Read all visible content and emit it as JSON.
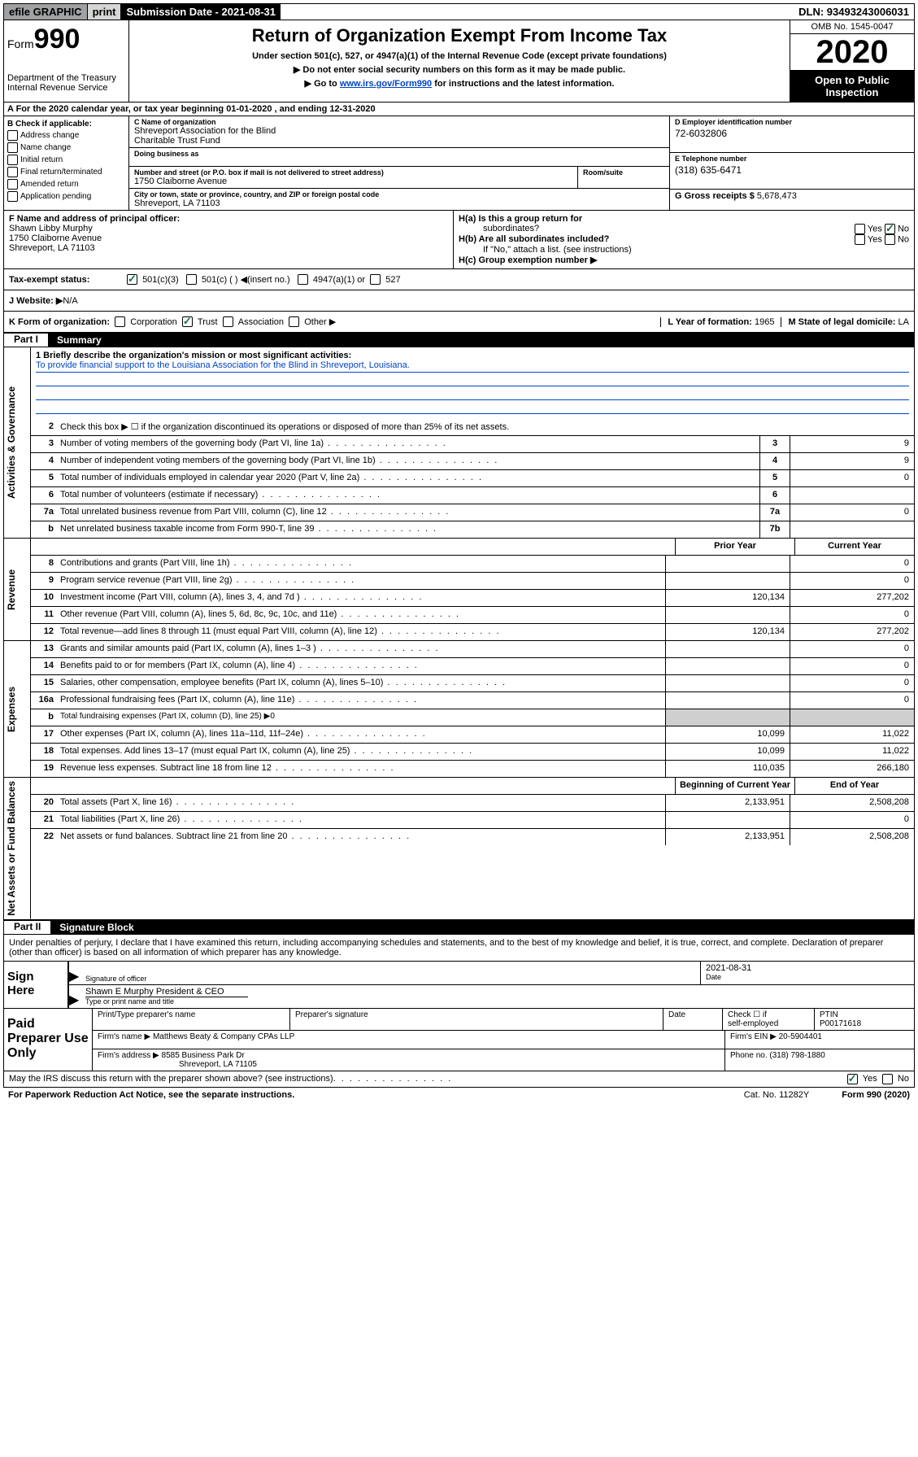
{
  "topbar": {
    "efile": "efile GRAPHIC",
    "print": "print",
    "submission": "Submission Date - 2021-08-31",
    "dln": "DLN: 93493243006031"
  },
  "header": {
    "form_prefix": "Form",
    "form_no": "990",
    "title": "Return of Organization Exempt From Income Tax",
    "sub1": "Under section 501(c), 527, or 4947(a)(1) of the Internal Revenue Code (except private foundations)",
    "sub2": "▶ Do not enter social security numbers on this form as it may be made public.",
    "sub3_pre": "▶ Go to ",
    "sub3_link": "www.irs.gov/Form990",
    "sub3_post": " for instructions and the latest information.",
    "dept": "Department of the Treasury\nInternal Revenue Service",
    "omb": "OMB No. 1545-0047",
    "year": "2020",
    "open": "Open to Public Inspection"
  },
  "rowA": "A For the 2020 calendar year, or tax year beginning 01-01-2020     , and ending 12-31-2020",
  "boxB": {
    "title": "B Check if applicable:",
    "items": [
      "Address change",
      "Name change",
      "Initial return",
      "Final return/terminated",
      "Amended return",
      "Application pending"
    ]
  },
  "boxC": {
    "name_label": "C Name of organization",
    "name": "Shreveport Association for the Blind\nCharitable Trust Fund",
    "dba_label": "Doing business as",
    "street_label": "Number and street (or P.O. box if mail is not delivered to street address)",
    "street": "1750 Claiborne Avenue",
    "room_label": "Room/suite",
    "city_label": "City or town, state or province, country, and ZIP or foreign postal code",
    "city": "Shreveport, LA  71103"
  },
  "boxD": {
    "label": "D Employer identification number",
    "val": "72-6032806"
  },
  "boxE": {
    "label": "E Telephone number",
    "val": "(318) 635-6471"
  },
  "boxG": {
    "label": "G Gross receipts $ ",
    "val": "5,678,473"
  },
  "boxF": {
    "label": "F  Name and address of principal officer:",
    "lines": [
      "Shawn Libby Murphy",
      "1750 Claiborne Avenue",
      "Shreveport, LA  71103"
    ]
  },
  "boxH": {
    "a": "H(a)  Is this a group return for",
    "a2": "subordinates?",
    "b": "H(b)  Are all subordinates included?",
    "note": "If \"No,\" attach a list. (see instructions)",
    "c": "H(c)  Group exemption number ▶"
  },
  "taxExempt": {
    "label": "Tax-exempt status:",
    "opts": [
      "501(c)(3)",
      "501(c) (  ) ◀(insert no.)",
      "4947(a)(1) or",
      "527"
    ]
  },
  "boxJ": {
    "label": "J   Website: ▶",
    "val": "  N/A"
  },
  "boxK": {
    "label": "K Form of organization:",
    "opts": [
      "Corporation",
      "Trust",
      "Association",
      "Other ▶"
    ],
    "l_label": "L Year of formation: ",
    "l_val": "1965",
    "m_label": "M State of legal domicile: ",
    "m_val": "LA"
  },
  "part1": {
    "num": "Part I",
    "title": "Summary"
  },
  "mission": {
    "q": "1  Briefly describe the organization's mission or most significant activities:",
    "a": "To provide financial support to the Louisiana Association for the Blind in Shreveport, Louisiana."
  },
  "lines_gov": [
    {
      "n": "2",
      "d": "Check this box ▶ ☐  if the organization discontinued its operations or disposed of more than 25% of its net assets.",
      "box": "",
      "v": ""
    },
    {
      "n": "3",
      "d": "Number of voting members of the governing body (Part VI, line 1a)",
      "box": "3",
      "v": "9"
    },
    {
      "n": "4",
      "d": "Number of independent voting members of the governing body (Part VI, line 1b)",
      "box": "4",
      "v": "9"
    },
    {
      "n": "5",
      "d": "Total number of individuals employed in calendar year 2020 (Part V, line 2a)",
      "box": "5",
      "v": "0"
    },
    {
      "n": "6",
      "d": "Total number of volunteers (estimate if necessary)",
      "box": "6",
      "v": ""
    },
    {
      "n": "7a",
      "d": "Total unrelated business revenue from Part VIII, column (C), line 12",
      "box": "7a",
      "v": "0"
    },
    {
      "n": "b",
      "d": "Net unrelated business taxable income from Form 990-T, line 39",
      "box": "7b",
      "v": ""
    }
  ],
  "col_headers": {
    "prior": "Prior Year",
    "current": "Current Year",
    "begin": "Beginning of Current Year",
    "end": "End of Year"
  },
  "lines_rev": [
    {
      "n": "8",
      "d": "Contributions and grants (Part VIII, line 1h)",
      "p": "",
      "c": "0"
    },
    {
      "n": "9",
      "d": "Program service revenue (Part VIII, line 2g)",
      "p": "",
      "c": "0"
    },
    {
      "n": "10",
      "d": "Investment income (Part VIII, column (A), lines 3, 4, and 7d )",
      "p": "120,134",
      "c": "277,202"
    },
    {
      "n": "11",
      "d": "Other revenue (Part VIII, column (A), lines 5, 6d, 8c, 9c, 10c, and 11e)",
      "p": "",
      "c": "0"
    },
    {
      "n": "12",
      "d": "Total revenue—add lines 8 through 11 (must equal Part VIII, column (A), line 12)",
      "p": "120,134",
      "c": "277,202"
    }
  ],
  "lines_exp": [
    {
      "n": "13",
      "d": "Grants and similar amounts paid (Part IX, column (A), lines 1–3 )",
      "p": "",
      "c": "0"
    },
    {
      "n": "14",
      "d": "Benefits paid to or for members (Part IX, column (A), line 4)",
      "p": "",
      "c": "0"
    },
    {
      "n": "15",
      "d": "Salaries, other compensation, employee benefits (Part IX, column (A), lines 5–10)",
      "p": "",
      "c": "0"
    },
    {
      "n": "16a",
      "d": "Professional fundraising fees (Part IX, column (A), line 11e)",
      "p": "",
      "c": "0"
    },
    {
      "n": "b",
      "d": "Total fundraising expenses (Part IX, column (D), line 25) ▶0",
      "shade": true
    },
    {
      "n": "17",
      "d": "Other expenses (Part IX, column (A), lines 11a–11d, 11f–24e)",
      "p": "10,099",
      "c": "11,022"
    },
    {
      "n": "18",
      "d": "Total expenses. Add lines 13–17 (must equal Part IX, column (A), line 25)",
      "p": "10,099",
      "c": "11,022"
    },
    {
      "n": "19",
      "d": "Revenue less expenses. Subtract line 18 from line 12",
      "p": "110,035",
      "c": "266,180"
    }
  ],
  "lines_net": [
    {
      "n": "20",
      "d": "Total assets (Part X, line 16)",
      "p": "2,133,951",
      "c": "2,508,208"
    },
    {
      "n": "21",
      "d": "Total liabilities (Part X, line 26)",
      "p": "",
      "c": "0"
    },
    {
      "n": "22",
      "d": "Net assets or fund balances. Subtract line 21 from line 20",
      "p": "2,133,951",
      "c": "2,508,208"
    }
  ],
  "vtabs": {
    "gov": "Activities & Governance",
    "rev": "Revenue",
    "exp": "Expenses",
    "net": "Net Assets or Fund Balances"
  },
  "part2": {
    "num": "Part II",
    "title": "Signature Block"
  },
  "sig": {
    "perjury": "Under penalties of perjury, I declare that I have examined this return, including accompanying schedules and statements, and to the best of my knowledge and belief, it is true, correct, and complete. Declaration of preparer (other than officer) is based on all information of which preparer has any knowledge.",
    "sign_here": "Sign Here",
    "sig_officer": "Signature of officer",
    "date": "2021-08-31",
    "date_label": "Date",
    "name": "Shawn E Murphy  President & CEO",
    "name_label": "Type or print name and title"
  },
  "paid": {
    "label": "Paid Preparer Use Only",
    "h1": "Print/Type preparer's name",
    "h2": "Preparer's signature",
    "h3": "Date",
    "h4_a": "Check ☐ if",
    "h4_b": "self-employed",
    "h5": "PTIN",
    "ptin": "P00171618",
    "firm_label": "Firm's name      ▶ ",
    "firm": "Matthews Beaty & Company CPAs LLP",
    "ein_label": "Firm's EIN ▶ ",
    "ein": "20-5904401",
    "addr_label": "Firm's address ▶ ",
    "addr1": "8585 Business Park Dr",
    "addr2": "Shreveport, LA  71105",
    "phone_label": "Phone no. ",
    "phone": "(318) 798-1880"
  },
  "footer": {
    "discuss": "May the IRS discuss this return with the preparer shown above? (see instructions)",
    "yes": "Yes",
    "no": "No",
    "paperwork": "For Paperwork Reduction Act Notice, see the separate instructions.",
    "cat": "Cat. No. 11282Y",
    "form": "Form 990 (2020)"
  }
}
